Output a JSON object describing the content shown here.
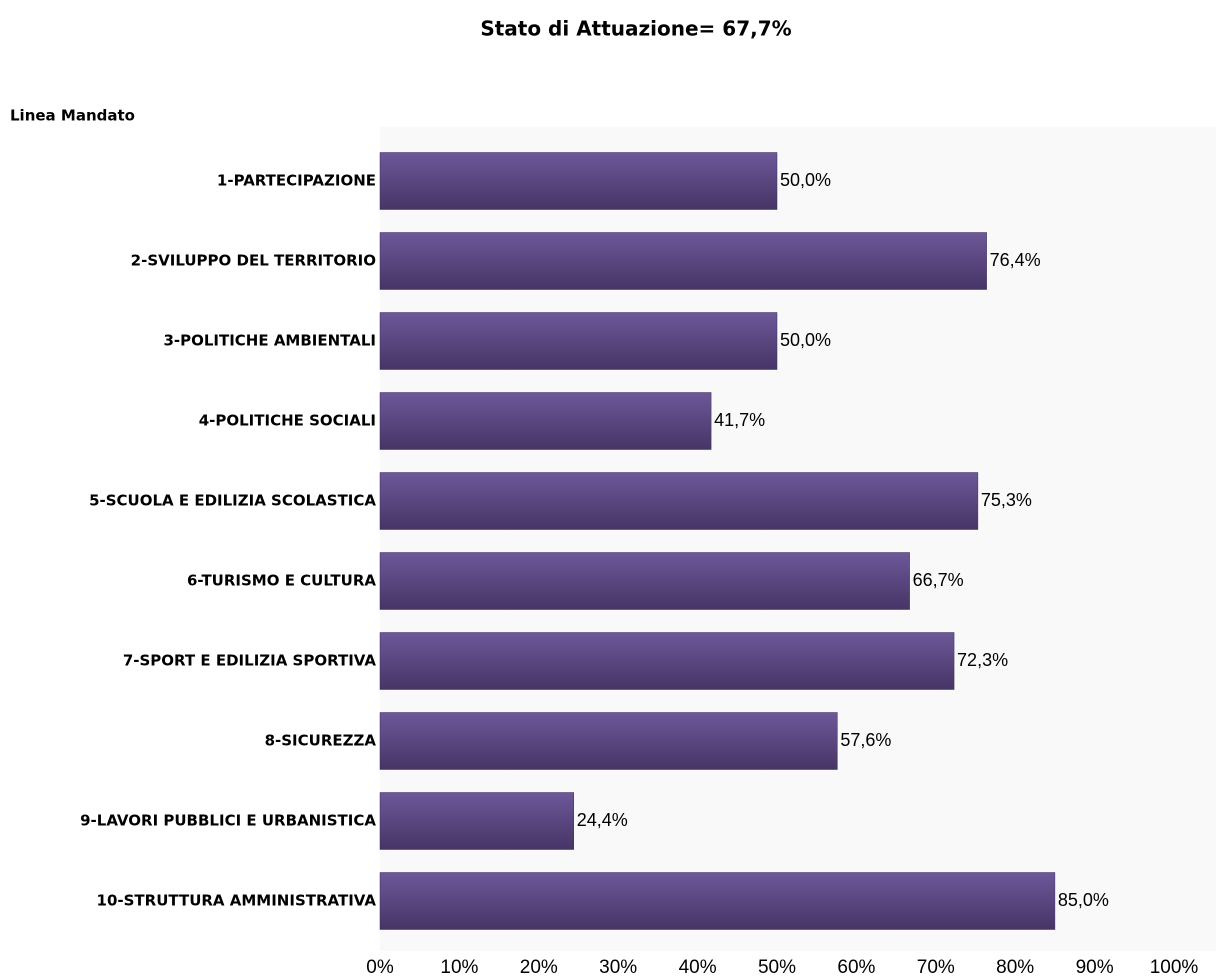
{
  "chart_data": {
    "type": "bar",
    "orientation": "horizontal",
    "title": "Stato di Attuazione= 67,7%",
    "y_label": "Linea Mandato",
    "categories": [
      "1-PARTECIPAZIONE",
      "2-SVILUPPO DEL TERRITORIO",
      "3-POLITICHE AMBIENTALI",
      "4-POLITICHE SOCIALI",
      "5-SCUOLA E EDILIZIA SCOLASTICA",
      "6-TURISMO E CULTURA",
      "7-SPORT E EDILIZIA SPORTIVA",
      "8-SICUREZZA",
      "9-LAVORI PUBBLICI E URBANISTICA",
      "10-STRUTTURA AMMINISTRATIVA"
    ],
    "values": [
      50.0,
      76.4,
      50.0,
      41.7,
      75.3,
      66.7,
      72.3,
      57.6,
      24.4,
      85.0
    ],
    "value_labels": [
      "50,0%",
      "76,4%",
      "50,0%",
      "41,7%",
      "75,3%",
      "66,7%",
      "72,3%",
      "57,6%",
      "24,4%",
      "85,0%"
    ],
    "color": "#5b4785",
    "xlim": [
      0,
      100
    ],
    "xticks": [
      {
        "value": 0,
        "label": "0%"
      },
      {
        "value": 10,
        "label": "10%"
      },
      {
        "value": 20,
        "label": "20%"
      },
      {
        "value": 30,
        "label": "30%"
      },
      {
        "value": 40,
        "label": "40%"
      },
      {
        "value": 50,
        "label": "50%"
      },
      {
        "value": 60,
        "label": "60%"
      },
      {
        "value": 70,
        "label": "70%"
      },
      {
        "value": 80,
        "label": "80%"
      },
      {
        "value": 90,
        "label": "90%"
      },
      {
        "value": 100,
        "label": "100%"
      }
    ],
    "grid": false
  }
}
